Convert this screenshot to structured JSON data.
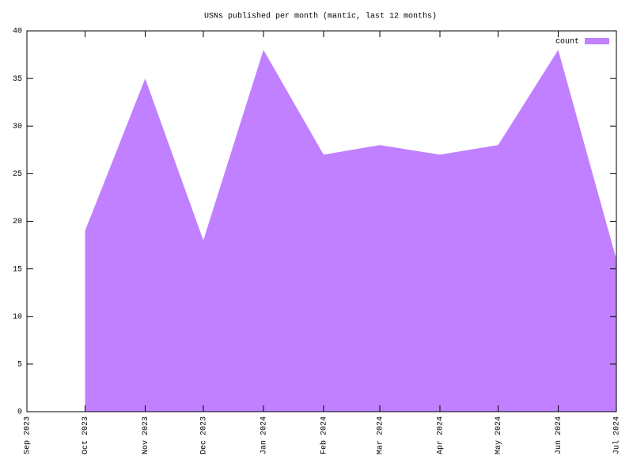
{
  "chart_data": {
    "type": "area",
    "title": "USNs published per month (mantic, last 12 months)",
    "x": [
      "Oct 2023",
      "Nov 2023",
      "Dec 2023",
      "Jan 2024",
      "Feb 2024",
      "Mar 2024",
      "Apr 2024",
      "May 2024",
      "Jun 2024",
      "Jul 2024"
    ],
    "series": [
      {
        "name": "count",
        "color": "#c080ff",
        "values": [
          19,
          35,
          18,
          38,
          27,
          28,
          27,
          28,
          38,
          16
        ]
      }
    ],
    "xlim": [
      "Sep 2023",
      "Jul 2024"
    ],
    "xticks": [
      "Sep 2023",
      "Oct 2023",
      "Nov 2023",
      "Dec 2023",
      "Jan 2024",
      "Feb 2024",
      "Mar 2024",
      "Apr 2024",
      "May 2024",
      "Jun 2024",
      "Jul 2024"
    ],
    "ylim": [
      0,
      40
    ],
    "yticks": [
      0,
      5,
      10,
      15,
      20,
      25,
      30,
      35,
      40
    ],
    "legend": "top-right"
  }
}
